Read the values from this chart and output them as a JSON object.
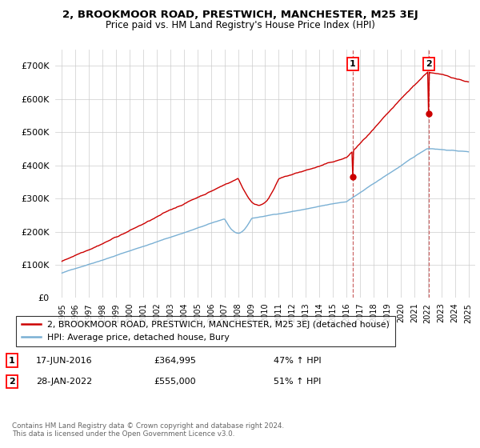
{
  "title": "2, BROOKMOOR ROAD, PRESTWICH, MANCHESTER, M25 3EJ",
  "subtitle": "Price paid vs. HM Land Registry's House Price Index (HPI)",
  "hpi_label": "HPI: Average price, detached house, Bury",
  "property_label": "2, BROOKMOOR ROAD, PRESTWICH, MANCHESTER, M25 3EJ (detached house)",
  "property_color": "#cc0000",
  "hpi_color": "#7ab0d4",
  "annotation1_date": "17-JUN-2016",
  "annotation1_price": "£364,995",
  "annotation1_hpi": "47% ↑ HPI",
  "annotation2_date": "28-JAN-2022",
  "annotation2_price": "£555,000",
  "annotation2_hpi": "51% ↑ HPI",
  "ylim": [
    0,
    750000
  ],
  "yticks": [
    0,
    100000,
    200000,
    300000,
    400000,
    500000,
    600000,
    700000
  ],
  "ytick_labels": [
    "£0",
    "£100K",
    "£200K",
    "£300K",
    "£400K",
    "£500K",
    "£600K",
    "£700K"
  ],
  "footer": "Contains HM Land Registry data © Crown copyright and database right 2024.\nThis data is licensed under the Open Government Licence v3.0.",
  "background_color": "#ffffff",
  "grid_color": "#cccccc",
  "vline_color": "#cc6666",
  "ann1_x": 2016.46,
  "ann1_y": 364995,
  "ann2_x": 2022.07,
  "ann2_y": 555000,
  "xlim_left": 1994.5,
  "xlim_right": 2025.5
}
